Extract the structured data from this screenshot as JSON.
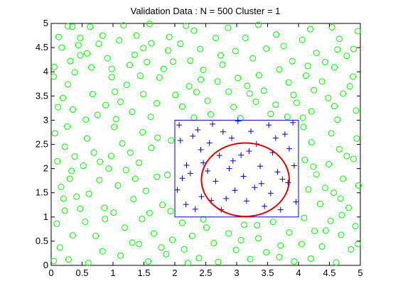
{
  "chart_data": {
    "type": "scatter",
    "title": "Validation Data : N = 500 Cluster = 1",
    "xlabel": "",
    "ylabel": "",
    "xlim": [
      0,
      5
    ],
    "ylim": [
      0,
      5
    ],
    "xticks": [
      "0",
      "0.5",
      "1",
      "1.5",
      "2",
      "2.5",
      "3",
      "3.5",
      "4",
      "4.5",
      "5"
    ],
    "yticks": [
      "0",
      "0.5",
      "1",
      "1.5",
      "2",
      "2.5",
      "3",
      "3.5",
      "4",
      "4.5",
      "5"
    ],
    "grid": false,
    "legend": "none",
    "colors": {
      "outside_points": "#00ff00",
      "inside_points": "#0000cc",
      "bounding_box": "#0000cc",
      "cluster_ellipse": "#dd0000",
      "axes": "#000000",
      "background": "#ffffff"
    },
    "series": [
      {
        "marker": "circle",
        "points": [
          [
            0.05,
            4.1
          ],
          [
            0.04,
            3.9
          ],
          [
            0.27,
            4.94
          ],
          [
            0.34,
            4.93
          ],
          [
            0.47,
            4.7
          ],
          [
            0.17,
            4.5
          ],
          [
            0.31,
            4.22
          ],
          [
            0.47,
            4.34
          ],
          [
            0.38,
            3.99
          ],
          [
            0.27,
            3.74
          ],
          [
            0.19,
            3.46
          ],
          [
            0.35,
            3.22
          ],
          [
            0.26,
            2.87
          ],
          [
            0.56,
            3.01
          ],
          [
            0.77,
            4.58
          ],
          [
            0.91,
            4.28
          ],
          [
            0.65,
            4.09
          ],
          [
            0.98,
            3.89
          ],
          [
            1.03,
            3.59
          ],
          [
            0.88,
            3.31
          ],
          [
            0.75,
            3.11
          ],
          [
            1.05,
            3.02
          ],
          [
            1.1,
            4.65
          ],
          [
            1.17,
            4.96
          ],
          [
            1.38,
            4.75
          ],
          [
            1.59,
            4.99
          ],
          [
            1.62,
            4.59
          ],
          [
            1.35,
            4.35
          ],
          [
            1.44,
            3.92
          ],
          [
            1.22,
            3.73
          ],
          [
            1.49,
            3.54
          ],
          [
            1.71,
            3.35
          ],
          [
            1.61,
            3.07
          ],
          [
            1.31,
            3.17
          ],
          [
            1.91,
            4.72
          ],
          [
            1.89,
            4.44
          ],
          [
            1.82,
            4.06
          ],
          [
            2.09,
            4.58
          ],
          [
            2.18,
            4.95
          ],
          [
            2.31,
            4.85
          ],
          [
            2.41,
            4.47
          ],
          [
            2.25,
            4.23
          ],
          [
            2.46,
            4.04
          ],
          [
            2.23,
            3.7
          ],
          [
            2.53,
            3.4
          ],
          [
            2.31,
            3.05
          ],
          [
            2.66,
            4.7
          ],
          [
            2.74,
            4.34
          ],
          [
            2.86,
            4.91
          ],
          [
            2.98,
            4.43
          ],
          [
            2.69,
            3.8
          ],
          [
            2.87,
            3.59
          ],
          [
            2.95,
            3.27
          ],
          [
            3.06,
            3.04
          ],
          [
            3.14,
            4.7
          ],
          [
            3.26,
            4.28
          ],
          [
            3.35,
            4.97
          ],
          [
            3.48,
            4.48
          ],
          [
            3.36,
            3.93
          ],
          [
            3.17,
            3.71
          ],
          [
            3.31,
            3.38
          ],
          [
            3.55,
            3.13
          ],
          [
            3.64,
            4.77
          ],
          [
            3.76,
            4.53
          ],
          [
            3.69,
            4.05
          ],
          [
            3.84,
            3.78
          ],
          [
            3.97,
            3.36
          ],
          [
            3.82,
            3.07
          ],
          [
            4.06,
            4.66
          ],
          [
            4.19,
            4.88
          ],
          [
            4.29,
            4.39
          ],
          [
            4.15,
            4.12
          ],
          [
            4.38,
            3.8
          ],
          [
            4.48,
            3.46
          ],
          [
            4.21,
            3.18
          ],
          [
            4.07,
            3.05
          ],
          [
            4.54,
            4.92
          ],
          [
            4.66,
            4.68
          ],
          [
            4.78,
            4.33
          ],
          [
            4.58,
            4.09
          ],
          [
            4.88,
            3.9
          ],
          [
            4.72,
            3.55
          ],
          [
            4.93,
            3.2
          ],
          [
            4.63,
            3.01
          ],
          [
            4.96,
            4.84
          ],
          [
            4.89,
            4.47
          ],
          [
            0.06,
            2.73
          ],
          [
            0.22,
            2.45
          ],
          [
            0.1,
            2.15
          ],
          [
            0.33,
            1.95
          ],
          [
            0.16,
            1.62
          ],
          [
            0.41,
            1.42
          ],
          [
            0.22,
            1.13
          ],
          [
            0.09,
            0.86
          ],
          [
            0.35,
            0.62
          ],
          [
            0.14,
            0.37
          ],
          [
            0.28,
            0.12
          ],
          [
            0.58,
            2.62
          ],
          [
            0.69,
            2.33
          ],
          [
            0.52,
            2.06
          ],
          [
            0.78,
            1.76
          ],
          [
            0.61,
            1.48
          ],
          [
            0.86,
            1.19
          ],
          [
            0.55,
            0.9
          ],
          [
            0.72,
            0.61
          ],
          [
            0.83,
            0.29
          ],
          [
            0.6,
            0.05
          ],
          [
            1.02,
            2.86
          ],
          [
            1.15,
            2.52
          ],
          [
            0.97,
            2.26
          ],
          [
            1.21,
            1.97
          ],
          [
            1.08,
            1.65
          ],
          [
            1.33,
            1.37
          ],
          [
            1.01,
            1.09
          ],
          [
            1.19,
            0.78
          ],
          [
            1.31,
            0.47
          ],
          [
            1.12,
            0.2
          ],
          [
            1.48,
            2.75
          ],
          [
            1.62,
            2.43
          ],
          [
            1.42,
            2.12
          ],
          [
            1.71,
            1.83
          ],
          [
            1.53,
            1.54
          ],
          [
            1.8,
            1.25
          ],
          [
            1.47,
            0.96
          ],
          [
            1.66,
            0.66
          ],
          [
            1.78,
            0.37
          ],
          [
            1.57,
            0.08
          ],
          [
            1.94,
            2.58
          ],
          [
            1.88,
            1.87
          ],
          [
            1.93,
            1.12
          ],
          [
            1.96,
            0.53
          ],
          [
            2.12,
            0.88
          ],
          [
            2.28,
            0.61
          ],
          [
            2.15,
            0.33
          ],
          [
            2.39,
            0.15
          ],
          [
            2.51,
            0.78
          ],
          [
            2.63,
            0.46
          ],
          [
            2.7,
            0.07
          ],
          [
            2.87,
            0.66
          ],
          [
            2.99,
            0.32
          ],
          [
            3.12,
            0.84
          ],
          [
            3.22,
            0.13
          ],
          [
            3.35,
            0.56
          ],
          [
            3.48,
            0.27
          ],
          [
            3.59,
            0.9
          ],
          [
            3.71,
            0.41
          ],
          [
            3.85,
            0.68
          ],
          [
            3.93,
            0.08
          ],
          [
            4.08,
            2.86
          ],
          [
            4.21,
            2.54
          ],
          [
            4.1,
            2.18
          ],
          [
            4.29,
            1.88
          ],
          [
            4.16,
            1.57
          ],
          [
            4.35,
            1.27
          ],
          [
            4.09,
            0.98
          ],
          [
            4.26,
            0.71
          ],
          [
            4.38,
            0.39
          ],
          [
            4.2,
            0.14
          ],
          [
            4.53,
            2.73
          ],
          [
            4.66,
            2.4
          ],
          [
            4.49,
            2.09
          ],
          [
            4.72,
            1.79
          ],
          [
            4.57,
            1.5
          ],
          [
            4.81,
            1.19
          ],
          [
            4.52,
            0.92
          ],
          [
            4.69,
            0.63
          ],
          [
            4.85,
            0.33
          ],
          [
            4.61,
            0.06
          ],
          [
            4.94,
            2.62
          ],
          [
            4.89,
            2.2
          ],
          [
            4.97,
            1.65
          ],
          [
            4.92,
            0.81
          ],
          [
            4.96,
            0.44
          ],
          [
            0.12,
            4.72
          ],
          [
            0.44,
            4.55
          ],
          [
            0.63,
            4.93
          ],
          [
            0.83,
            4.75
          ],
          [
            1.27,
            4.14
          ],
          [
            1.75,
            3.88
          ],
          [
            2.01,
            3.52
          ],
          [
            2.12,
            3.28
          ],
          [
            2.58,
            3.12
          ],
          [
            2.77,
            4.15
          ],
          [
            3.02,
            3.87
          ],
          [
            3.44,
            3.61
          ],
          [
            3.9,
            4.22
          ],
          [
            4.25,
            3.62
          ],
          [
            4.43,
            4.2
          ],
          [
            4.83,
            3.7
          ],
          [
            0.38,
            2.25
          ],
          [
            0.47,
            1.17
          ],
          [
            0.93,
            2.0
          ],
          [
            1.28,
            2.33
          ],
          [
            1.59,
            1.08
          ],
          [
            1.86,
            0.23
          ],
          [
            2.46,
            0.95
          ],
          [
            3.07,
            0.52
          ],
          [
            3.69,
            0.17
          ],
          [
            4.43,
            1.6
          ],
          [
            4.78,
            2.26
          ],
          [
            4.44,
            0.72
          ],
          [
            0.04,
            0.09
          ],
          [
            0.2,
            1.38
          ],
          [
            0.67,
            3.54
          ],
          [
            1.12,
            3.38
          ],
          [
            1.55,
            4.2
          ],
          [
            2.35,
            3.58
          ],
          [
            3.63,
            3.32
          ],
          [
            4.12,
            3.92
          ],
          [
            4.63,
            4.46
          ],
          [
            0.11,
            3.27
          ],
          [
            0.58,
            4.38
          ],
          [
            0.98,
            4.06
          ],
          [
            1.49,
            4.49
          ],
          [
            1.97,
            4.21
          ],
          [
            2.42,
            3.84
          ],
          [
            3.21,
            3.55
          ],
          [
            3.92,
            3.52
          ],
          [
            4.58,
            3.29
          ],
          [
            0.87,
            0.96
          ],
          [
            1.42,
            0.44
          ],
          [
            2.21,
            0.05
          ],
          [
            3.33,
            0.83
          ],
          [
            4.05,
            0.44
          ],
          [
            4.7,
            1.04
          ],
          [
            0.3,
            1.79
          ],
          [
            0.79,
            2.14
          ],
          [
            1.36,
            1.79
          ],
          [
            1.72,
            2.64
          ],
          [
            4.24,
            2.04
          ],
          [
            4.68,
            1.38
          ]
        ]
      },
      {
        "marker": "plus",
        "points": [
          [
            2.07,
            2.9
          ],
          [
            2.09,
            2.58
          ],
          [
            2.19,
            2.07
          ],
          [
            2.04,
            1.56
          ],
          [
            2.18,
            1.26
          ],
          [
            2.37,
            2.8
          ],
          [
            2.42,
            2.39
          ],
          [
            2.25,
            1.9
          ],
          [
            2.33,
            1.16
          ],
          [
            2.43,
            1.42
          ],
          [
            2.61,
            2.92
          ],
          [
            2.78,
            2.76
          ],
          [
            2.56,
            2.53
          ],
          [
            2.72,
            2.27
          ],
          [
            2.53,
            1.95
          ],
          [
            2.66,
            1.74
          ],
          [
            2.59,
            1.34
          ],
          [
            2.75,
            1.15
          ],
          [
            2.92,
            2.63
          ],
          [
            3.02,
            2.98
          ],
          [
            2.88,
            2.0
          ],
          [
            2.97,
            1.55
          ],
          [
            3.11,
            1.84
          ],
          [
            3.07,
            2.28
          ],
          [
            3.16,
            1.33
          ],
          [
            3.23,
            2.77
          ],
          [
            3.32,
            2.51
          ],
          [
            3.38,
            2.05
          ],
          [
            3.29,
            1.61
          ],
          [
            3.45,
            1.22
          ],
          [
            3.52,
            2.9
          ],
          [
            3.58,
            2.33
          ],
          [
            3.66,
            1.93
          ],
          [
            3.55,
            1.49
          ],
          [
            3.71,
            1.15
          ],
          [
            3.78,
            2.71
          ],
          [
            3.85,
            2.41
          ],
          [
            3.93,
            2.06
          ],
          [
            3.83,
            1.71
          ],
          [
            3.96,
            1.31
          ],
          [
            3.91,
            2.95
          ],
          [
            2.83,
            1.38
          ],
          [
            3.4,
            1.69
          ],
          [
            2.46,
            2.12
          ],
          [
            3.2,
            2.36
          ],
          [
            3.63,
            2.63
          ],
          [
            2.94,
            2.16
          ],
          [
            2.29,
            2.67
          ],
          [
            3.74,
            1.78
          ],
          [
            2.12,
            1.8
          ]
        ]
      }
    ],
    "shapes": {
      "bounding_box": {
        "x0": 2.0,
        "x1": 4.0,
        "y0": 1.0,
        "y1": 3.0
      },
      "ellipse": {
        "cx": 3.14,
        "cy": 1.77,
        "rx": 0.71,
        "ry": 0.76
      }
    }
  }
}
